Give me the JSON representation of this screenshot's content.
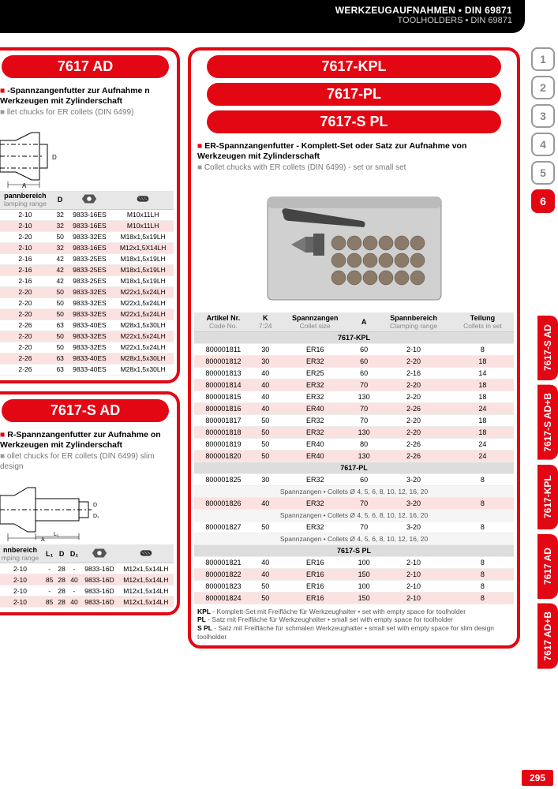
{
  "header": {
    "line1": "WERKZEUGAUFNAHMEN • DIN 69871",
    "line2": "TOOLHOLDERS • DIN 69871"
  },
  "numtabs": [
    "1",
    "2",
    "3",
    "4",
    "5",
    "6"
  ],
  "numtab_active_index": 5,
  "vtabs": [
    "7617-S AD",
    "7617-S AD+B",
    "7617-KPL",
    "7617 AD",
    "7617 AD+B"
  ],
  "pagenum": "295",
  "left1": {
    "title": "7617 AD",
    "de": "-Spannzangenfutter zur Aufnahme n Werkzeugen mit Zylinderschaft",
    "en": "llet chucks for ER collets (DIN 6499)",
    "headers": [
      {
        "de": "pannbereich",
        "en": "lamping range"
      },
      {
        "de": "D",
        "en": ""
      },
      {
        "de": "",
        "en": "",
        "icon": "nut"
      },
      {
        "de": "",
        "en": "",
        "icon": "screw"
      }
    ],
    "rows": [
      {
        "c": [
          "2-10",
          "32",
          "9833-16ES",
          "M10x11LH"
        ],
        "pink": false
      },
      {
        "c": [
          "2-10",
          "32",
          "9833-16ES",
          "M10x11LH"
        ],
        "pink": true
      },
      {
        "c": [
          "2-20",
          "50",
          "9833-32ES",
          "M18x1,5x19LH"
        ],
        "pink": false
      },
      {
        "c": [
          "2-10",
          "32",
          "9833-16ES",
          "M12x1,5X14LH"
        ],
        "pink": true
      },
      {
        "c": [
          "2-16",
          "42",
          "9833-25ES",
          "M18x1,5x19LH"
        ],
        "pink": false
      },
      {
        "c": [
          "2-16",
          "42",
          "9833-25ES",
          "M18x1,5x19LH"
        ],
        "pink": true
      },
      {
        "c": [
          "2-16",
          "42",
          "9833-25ES",
          "M18x1,5x19LH"
        ],
        "pink": false
      },
      {
        "c": [
          "2-20",
          "50",
          "9833-32ES",
          "M22x1,5x24LH"
        ],
        "pink": true
      },
      {
        "c": [
          "2-20",
          "50",
          "9833-32ES",
          "M22x1,5x24LH"
        ],
        "pink": false
      },
      {
        "c": [
          "2-20",
          "50",
          "9833-32ES",
          "M22x1,5x24LH"
        ],
        "pink": true
      },
      {
        "c": [
          "2-26",
          "63",
          "9833-40ES",
          "M28x1,5x30LH"
        ],
        "pink": false
      },
      {
        "c": [
          "2-20",
          "50",
          "9833-32ES",
          "M22x1,5x24LH"
        ],
        "pink": true
      },
      {
        "c": [
          "2-20",
          "50",
          "9833-32ES",
          "M22x1,5x24LH"
        ],
        "pink": false
      },
      {
        "c": [
          "2-26",
          "63",
          "9833-40ES",
          "M28x1,5x30LH"
        ],
        "pink": true
      },
      {
        "c": [
          "2-26",
          "63",
          "9833-40ES",
          "M28x1,5x30LH"
        ],
        "pink": false
      }
    ]
  },
  "left2": {
    "title": "7617-S AD",
    "de": "R-Spannzangenfutter zur Aufnahme on Werkzeugen mit Zylinderschaft",
    "en": "ollet chucks for ER collets (DIN 6499) slim design",
    "headers": [
      {
        "de": "nnbereich",
        "en": "mping range"
      },
      {
        "de": "L₁",
        "en": ""
      },
      {
        "de": "D",
        "en": ""
      },
      {
        "de": "D₁",
        "en": ""
      },
      {
        "de": "",
        "en": "",
        "icon": "nut"
      },
      {
        "de": "",
        "en": "",
        "icon": "screw"
      }
    ],
    "rows": [
      {
        "c": [
          "2-10",
          "-",
          "28",
          "-",
          "9833-16D",
          "M12x1,5x14LH"
        ],
        "pink": false
      },
      {
        "c": [
          "2-10",
          "85",
          "28",
          "40",
          "9833-16D",
          "M12x1,5x14LH"
        ],
        "pink": true
      },
      {
        "c": [
          "2-10",
          "-",
          "28",
          "-",
          "9833-16D",
          "M12x1,5x14LH"
        ],
        "pink": false
      },
      {
        "c": [
          "2-10",
          "85",
          "28",
          "40",
          "9833-16D",
          "M12x1,5x14LH"
        ],
        "pink": true
      }
    ]
  },
  "right": {
    "titles": [
      "7617-KPL",
      "7617-PL",
      "7617-S PL"
    ],
    "de": "ER-Spannzangenfutter - Komplett-Set oder Satz zur Aufnahme von Werkzeugen mit Zylinderschaft",
    "en": "Collet chucks with ER collets (DIN 6499) - set or small set",
    "headers": [
      {
        "de": "Artikel Nr.",
        "en": "Code No."
      },
      {
        "de": "K",
        "en": "7:24"
      },
      {
        "de": "Spannzangen",
        "en": "Collet size"
      },
      {
        "de": "A",
        "en": ""
      },
      {
        "de": "Spannbereich",
        "en": "Clamping range"
      },
      {
        "de": "Teilung",
        "en": "Collets in set"
      }
    ],
    "sections": [
      {
        "name": "7617-KPL",
        "rows": [
          {
            "c": [
              "800001811",
              "30",
              "ER16",
              "60",
              "2-10",
              "8"
            ],
            "pink": false
          },
          {
            "c": [
              "800001812",
              "30",
              "ER32",
              "60",
              "2-20",
              "18"
            ],
            "pink": true
          },
          {
            "c": [
              "800001813",
              "40",
              "ER25",
              "60",
              "2-16",
              "14"
            ],
            "pink": false
          },
          {
            "c": [
              "800001814",
              "40",
              "ER32",
              "70",
              "2-20",
              "18"
            ],
            "pink": true
          },
          {
            "c": [
              "800001815",
              "40",
              "ER32",
              "130",
              "2-20",
              "18"
            ],
            "pink": false
          },
          {
            "c": [
              "800001816",
              "40",
              "ER40",
              "70",
              "2-26",
              "24"
            ],
            "pink": true
          },
          {
            "c": [
              "800001817",
              "50",
              "ER32",
              "70",
              "2-20",
              "18"
            ],
            "pink": false
          },
          {
            "c": [
              "800001818",
              "50",
              "ER32",
              "130",
              "2-20",
              "18"
            ],
            "pink": true
          },
          {
            "c": [
              "800001819",
              "50",
              "ER40",
              "80",
              "2-26",
              "24"
            ],
            "pink": false
          },
          {
            "c": [
              "800001820",
              "50",
              "ER40",
              "130",
              "2-26",
              "24"
            ],
            "pink": true
          }
        ]
      },
      {
        "name": "7617-PL",
        "rows": [
          {
            "c": [
              "800001825",
              "30",
              "ER32",
              "60",
              "3-20",
              "8"
            ],
            "pink": false,
            "note": "Spannzangen • Collets Ø 4, 5, 6, 8, 10, 12, 16, 20"
          },
          {
            "c": [
              "800001826",
              "40",
              "ER32",
              "70",
              "3-20",
              "8"
            ],
            "pink": true,
            "note": "Spannzangen • Collets Ø 4, 5, 6, 8, 10, 12, 16, 20"
          },
          {
            "c": [
              "800001827",
              "50",
              "ER32",
              "70",
              "3-20",
              "8"
            ],
            "pink": false,
            "note": "Spannzangen • Collets Ø 4, 5, 6, 8, 10, 12, 16, 20"
          }
        ]
      },
      {
        "name": "7617-S PL",
        "rows": [
          {
            "c": [
              "800001821",
              "40",
              "ER16",
              "100",
              "2-10",
              "8"
            ],
            "pink": false
          },
          {
            "c": [
              "800001822",
              "40",
              "ER16",
              "150",
              "2-10",
              "8"
            ],
            "pink": true
          },
          {
            "c": [
              "800001823",
              "50",
              "ER16",
              "100",
              "2-10",
              "8"
            ],
            "pink": false
          },
          {
            "c": [
              "800001824",
              "50",
              "ER16",
              "150",
              "2-10",
              "8"
            ],
            "pink": true
          }
        ]
      }
    ],
    "footnotes": [
      {
        "b": "KPL",
        "t": " - Komplett-Set mit Freifläche für Werkzeughalter • set with empty space for toolholder"
      },
      {
        "b": "PL",
        "t": " - Satz mit Freifläche für Werkzeughalter • small set with empty space for toolholder"
      },
      {
        "b": "S PL",
        "t": " - Satz mit Freifläche für schmalen Werkzeughalter • small set with empty space for slim design toolholder"
      }
    ]
  }
}
